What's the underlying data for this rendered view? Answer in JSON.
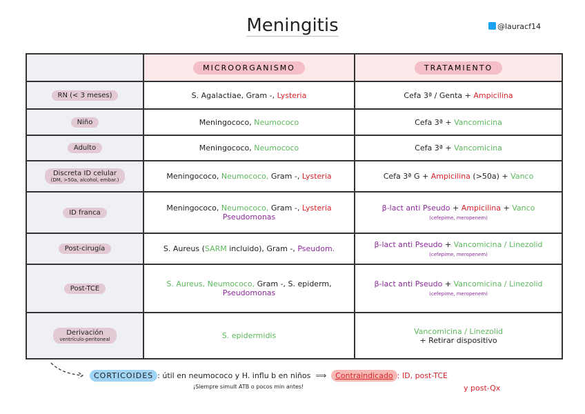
{
  "title": "Meningitis",
  "handle": "@lauracf14",
  "table": {
    "headers": [
      "MICROORGANISMO",
      "TRATAMIENTO"
    ],
    "rows": [
      {
        "label": [
          "RN (< 3 meses)"
        ],
        "micro": [
          [
            {
              "text": "S. Agalactiae, Gram -, ",
              "color": "#222222"
            },
            {
              "text": "Lysteria",
              "color": "#d8232a"
            }
          ]
        ],
        "treatment": [
          [
            {
              "text": "Cefa 3ª / Genta + ",
              "color": "#222222"
            },
            {
              "text": "Ampicilina",
              "color": "#d8232a"
            }
          ]
        ]
      },
      {
        "label": [
          "Niño"
        ],
        "micro": [
          [
            {
              "text": "Meningococo, ",
              "color": "#222222"
            },
            {
              "text": "Neumococo",
              "color": "#5cb85c"
            }
          ]
        ],
        "treatment": [
          [
            {
              "text": "Cefa 3ª + ",
              "color": "#222222"
            },
            {
              "text": "Vancomicina",
              "color": "#5cb85c"
            }
          ]
        ]
      },
      {
        "label": [
          "Adulto"
        ],
        "micro": [
          [
            {
              "text": "Meningococo, ",
              "color": "#222222"
            },
            {
              "text": "Neumococo",
              "color": "#5cb85c"
            }
          ]
        ],
        "treatment": [
          [
            {
              "text": "Cefa 3ª + ",
              "color": "#222222"
            },
            {
              "text": "Vancomicina",
              "color": "#5cb85c"
            }
          ]
        ]
      },
      {
        "label": [
          "Discreta ID celular",
          "(DM, >50a, alcohol, embar.)"
        ],
        "micro": [
          [
            {
              "text": "Meningococo, ",
              "color": "#222222"
            },
            {
              "text": "Neumococo, ",
              "color": "#5cb85c"
            },
            {
              "text": "Gram -, ",
              "color": "#222222"
            },
            {
              "text": "Lysteria",
              "color": "#d8232a"
            }
          ]
        ],
        "treatment": [
          [
            {
              "text": "Cefa 3ª G + ",
              "color": "#222222"
            },
            {
              "text": "Ampicilina",
              "color": "#d8232a"
            },
            {
              "text": " (>50a) + ",
              "color": "#222222"
            },
            {
              "text": "Vanco",
              "color": "#5cb85c"
            }
          ]
        ]
      },
      {
        "label": [
          "ID franca"
        ],
        "micro": [
          [
            {
              "text": "Meningococo, ",
              "color": "#222222"
            },
            {
              "text": "Neumococo, ",
              "color": "#5cb85c"
            },
            {
              "text": "Gram -, ",
              "color": "#222222"
            },
            {
              "text": "Lysteria",
              "color": "#d8232a"
            }
          ],
          [
            {
              "text": "Pseudomonas",
              "color": "#8e2a9c"
            }
          ]
        ],
        "treatment": [
          [
            {
              "text": "β-lact anti Pseudo",
              "color": "#8e2a9c"
            },
            {
              "text": " + ",
              "color": "#222222"
            },
            {
              "text": "Ampicilina",
              "color": "#d8232a"
            },
            {
              "text": " + ",
              "color": "#222222"
            },
            {
              "text": "Vanco",
              "color": "#5cb85c"
            }
          ],
          [
            {
              "text": "(cefepime, meropenem)",
              "color": "#8e2a9c",
              "small": true
            }
          ]
        ]
      },
      {
        "label": [
          "Post-cirugía"
        ],
        "micro": [
          [
            {
              "text": "S. Aureus (",
              "color": "#222222"
            },
            {
              "text": "SARM",
              "color": "#5cb85c"
            },
            {
              "text": " incluido), Gram -, ",
              "color": "#222222"
            },
            {
              "text": "Pseudom.",
              "color": "#8e2a9c"
            }
          ]
        ],
        "treatment": [
          [
            {
              "text": "β-lact anti Pseudo",
              "color": "#8e2a9c"
            },
            {
              "text": " + ",
              "color": "#222222"
            },
            {
              "text": "Vancomicina / Linezolid",
              "color": "#5cb85c"
            }
          ],
          [
            {
              "text": "(cefepime, meropenem)",
              "color": "#8e2a9c",
              "small": true
            }
          ]
        ]
      },
      {
        "label": [
          "Post-TCE"
        ],
        "micro": [
          [
            {
              "text": "S. Aureus, Neumococo, ",
              "color": "#5cb85c"
            },
            {
              "text": "Gram -, S. epiderm,",
              "color": "#222222"
            }
          ],
          [
            {
              "text": "Pseudomonas",
              "color": "#8e2a9c"
            }
          ]
        ],
        "treatment": [
          [
            {
              "text": "β-lact anti Pseudo",
              "color": "#8e2a9c"
            },
            {
              "text": " + ",
              "color": "#222222"
            },
            {
              "text": "Vancomicina / Linezolid",
              "color": "#5cb85c"
            }
          ],
          [
            {
              "text": "(cefepime, meropenem)",
              "color": "#8e2a9c",
              "small": true
            }
          ]
        ]
      },
      {
        "label": [
          "Derivación",
          "ventrículo-peritoneal"
        ],
        "micro": [
          [
            {
              "text": "S. epidermidis",
              "color": "#5cb85c"
            }
          ]
        ],
        "treatment": [
          [
            {
              "text": "Vancomicina / Linezolid",
              "color": "#5cb85c"
            }
          ],
          [
            {
              "text": "+ Retirar dispositivo",
              "color": "#222222"
            }
          ]
        ]
      }
    ]
  },
  "footer": {
    "corticoids": "CORTICOIDES",
    "use": ": útil en neumococo y H. influ b en niños",
    "reminder": "¡Siempre simult ATB o pocos min antes!",
    "contra": "Contraindicado",
    "contra_list": ": ID, post-TCE",
    "contra_list2": "y post-Qx"
  }
}
